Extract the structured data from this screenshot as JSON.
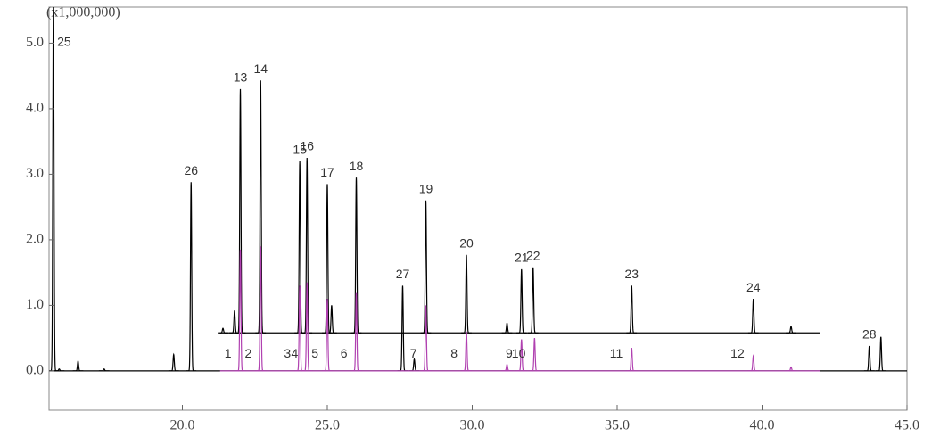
{
  "chart_data": {
    "type": "chromatogram",
    "y_unit_label": "(x1,000,000)",
    "xlim": [
      15.4,
      45.0
    ],
    "ylim": [
      -0.6,
      5.55
    ],
    "xticks": [
      {
        "value": 20,
        "label": "20.0"
      },
      {
        "value": 25,
        "label": "25.0"
      },
      {
        "value": 30,
        "label": "30.0"
      },
      {
        "value": 35,
        "label": "35.0"
      },
      {
        "value": 40,
        "label": "40.0"
      },
      {
        "value": 45,
        "label": "45.0"
      }
    ],
    "yticks": [
      {
        "value": 0,
        "label": "0.0"
      },
      {
        "value": 1,
        "label": "1.0"
      },
      {
        "value": 2,
        "label": "2.0"
      },
      {
        "value": 3,
        "label": "3.0"
      },
      {
        "value": 4,
        "label": "4.0"
      },
      {
        "value": 5,
        "label": "5.0"
      }
    ],
    "series": [
      {
        "color": "#000000",
        "span": [
          15.4,
          45.0
        ],
        "baseline": 0,
        "peaks": [
          {
            "x": 15.55,
            "height": 5.6,
            "label": "25"
          },
          {
            "x": 15.75,
            "height": 0.03,
            "label": null
          },
          {
            "x": 16.4,
            "height": 0.15,
            "label": null
          },
          {
            "x": 17.3,
            "height": 0.03,
            "label": null
          },
          {
            "x": 19.7,
            "height": 0.25,
            "label": null
          },
          {
            "x": 20.3,
            "height": 2.88,
            "label": "26"
          },
          {
            "x": 27.6,
            "height": 1.3,
            "label": "27"
          },
          {
            "x": 28.0,
            "height": 0.18,
            "label": null
          },
          {
            "x": 43.7,
            "height": 0.38,
            "label": "28"
          },
          {
            "x": 44.1,
            "height": 0.52,
            "label": null
          }
        ]
      },
      {
        "color": "#000000",
        "span": [
          21.3,
          42.0
        ],
        "baseline": 0.58,
        "peaks": [
          {
            "x": 21.4,
            "height": 0.65,
            "label": null
          },
          {
            "x": 21.8,
            "height": 0.92,
            "label": null
          },
          {
            "x": 22.0,
            "height": 4.3,
            "label": "13"
          },
          {
            "x": 22.7,
            "height": 4.43,
            "label": "14"
          },
          {
            "x": 24.05,
            "height": 3.2,
            "label": "15"
          },
          {
            "x": 24.3,
            "height": 3.25,
            "label": "16"
          },
          {
            "x": 25.0,
            "height": 2.85,
            "label": "17"
          },
          {
            "x": 25.15,
            "height": 1.0,
            "label": null
          },
          {
            "x": 26.0,
            "height": 2.95,
            "label": "18"
          },
          {
            "x": 28.4,
            "height": 2.6,
            "label": "19"
          },
          {
            "x": 29.8,
            "height": 1.77,
            "label": "20"
          },
          {
            "x": 31.2,
            "height": 0.73,
            "label": null
          },
          {
            "x": 31.7,
            "height": 1.55,
            "label": "21"
          },
          {
            "x": 32.1,
            "height": 1.58,
            "label": "22"
          },
          {
            "x": 35.5,
            "height": 1.3,
            "label": "23"
          },
          {
            "x": 39.7,
            "height": 1.1,
            "label": "24"
          },
          {
            "x": 41.0,
            "height": 0.68,
            "label": null
          }
        ]
      },
      {
        "color": "#b040b0",
        "span": [
          21.3,
          42.0
        ],
        "baseline": 0,
        "peaks": [
          {
            "x": 22.0,
            "height": 1.85,
            "label": "1"
          },
          {
            "x": 22.7,
            "height": 1.9,
            "label": "2"
          },
          {
            "x": 24.05,
            "height": 1.3,
            "label": "3"
          },
          {
            "x": 24.3,
            "height": 1.35,
            "label": "4"
          },
          {
            "x": 25.0,
            "height": 1.1,
            "label": "5"
          },
          {
            "x": 26.0,
            "height": 1.2,
            "label": "6"
          },
          {
            "x": 28.4,
            "height": 1.0,
            "label": "7"
          },
          {
            "x": 29.8,
            "height": 0.6,
            "label": "8"
          },
          {
            "x": 31.2,
            "height": 0.1,
            "label": null
          },
          {
            "x": 31.7,
            "height": 0.48,
            "label": "9"
          },
          {
            "x": 32.15,
            "height": 0.5,
            "label": "10"
          },
          {
            "x": 35.5,
            "height": 0.35,
            "label": "11"
          },
          {
            "x": 39.7,
            "height": 0.23,
            "label": "12"
          },
          {
            "x": 41.0,
            "height": 0.06,
            "label": null
          }
        ]
      }
    ]
  }
}
